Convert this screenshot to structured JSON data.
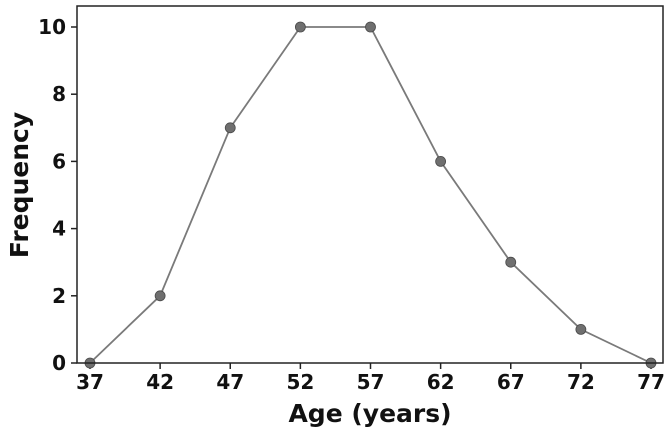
{
  "chart_data": {
    "type": "line",
    "xlabel": "Age (years)",
    "ylabel": "Frequency",
    "x": [
      37,
      42,
      47,
      52,
      57,
      62,
      67,
      72,
      77
    ],
    "series": [
      {
        "values": [
          0,
          2,
          7,
          10,
          10,
          6,
          3,
          1,
          0
        ]
      }
    ],
    "xticks": [
      "37",
      "42",
      "47",
      "52",
      "57",
      "62",
      "67",
      "72",
      "77"
    ],
    "yticks": [
      "0",
      "2",
      "4",
      "6",
      "8",
      "10"
    ],
    "xlim": [
      37,
      77
    ],
    "ylim": [
      0,
      10
    ],
    "grid": false,
    "colors": {
      "line": "#7a7a7a",
      "marker": "#6f6f6f",
      "axes": "#222222"
    }
  }
}
